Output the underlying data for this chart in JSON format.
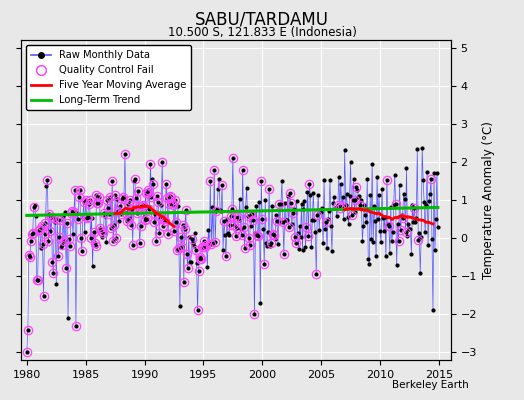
{
  "title": "SABU/TARDAMU",
  "subtitle": "10.500 S, 121.833 E (Indonesia)",
  "ylabel": "Temperature Anomaly (°C)",
  "credit": "Berkeley Earth",
  "xlim": [
    1979.5,
    2016.0
  ],
  "ylim": [
    -3.2,
    5.2
  ],
  "xticks": [
    1980,
    1985,
    1990,
    1995,
    2000,
    2005,
    2010,
    2015
  ],
  "yticks": [
    -3,
    -2,
    -1,
    0,
    1,
    2,
    3,
    4,
    5
  ],
  "bg_color": "#e8e8e8",
  "grid_color": "white",
  "line_color": "#5555ff",
  "qc_color": "#ff44ff",
  "ma_color": "red",
  "trend_color": "#00bb00",
  "seed": 12345
}
